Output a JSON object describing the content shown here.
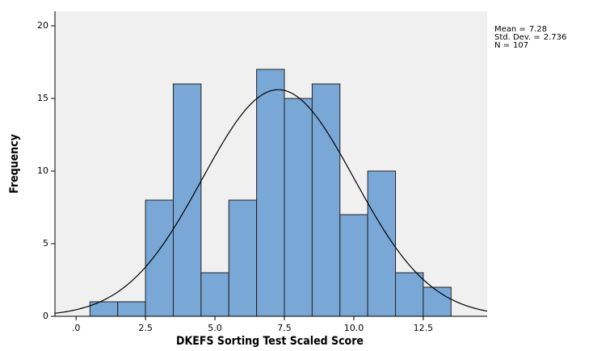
{
  "chart_data": {
    "type": "histogram",
    "x_label": "DKEFS Sorting Test Scaled Score",
    "y_label": "Frequency",
    "bins": [
      0.5,
      1.5,
      2.5,
      3.5,
      4.5,
      5.5,
      6.5,
      7.5,
      8.5,
      9.5,
      10.5,
      11.5,
      12.5,
      13.5
    ],
    "values": [
      1,
      1,
      8,
      16,
      3,
      8,
      17,
      15,
      16,
      7,
      10,
      3,
      2
    ],
    "color": "#79a7d6",
    "xlim": [
      -0.76,
      14.8
    ],
    "ylim": [
      0,
      21
    ],
    "xticks": [
      {
        "value": 0,
        "label": ".0"
      },
      2.5,
      {
        "value": 5,
        "label": "5.0"
      },
      7.5,
      {
        "value": 10,
        "label": "10.0"
      },
      12.5
    ],
    "yticks": [
      0,
      5,
      10,
      15,
      20
    ],
    "normal_curve": true,
    "stats": [
      {
        "label": "Mean =",
        "value": 7.28
      },
      {
        "label": "Std. Dev. =",
        "value": 2.736
      },
      {
        "label": "N =",
        "value": 107
      }
    ]
  }
}
